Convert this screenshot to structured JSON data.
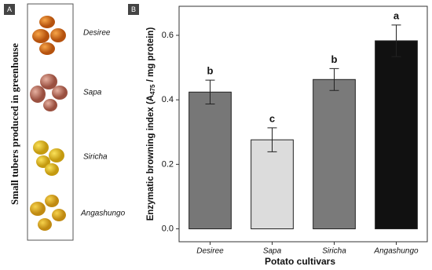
{
  "panel_a": {
    "label": "A",
    "caption": "Small tubers produced in greenhouse",
    "cultivars": [
      "Desiree",
      "Sapa",
      "Siricha",
      "Angashungo"
    ]
  },
  "chart_data": {
    "type": "bar",
    "panel_label": "B",
    "x_label": "Potato cultivars",
    "y_label": {
      "before": "Enzymatic browning index (A",
      "sub": "475",
      "after": " / mg protein)"
    },
    "categories": [
      "Desiree",
      "Sapa",
      "Siricha",
      "Angashungo"
    ],
    "values": [
      0.424,
      0.276,
      0.463,
      0.583
    ],
    "errors": [
      0.037,
      0.037,
      0.034,
      0.049
    ],
    "letters": [
      "b",
      "c",
      "b",
      "a"
    ],
    "colors": [
      "#777777",
      "#dcdcdc",
      "#7a7a7a",
      "#111111"
    ],
    "ylim": [
      -0.04,
      0.69
    ],
    "yticks": [
      {
        "value": 0,
        "label": "0.0"
      },
      {
        "value": 0.2,
        "label": "0.2"
      },
      {
        "value": 0.4,
        "label": "0.4"
      },
      {
        "value": 0.6,
        "label": "0.6"
      }
    ]
  }
}
